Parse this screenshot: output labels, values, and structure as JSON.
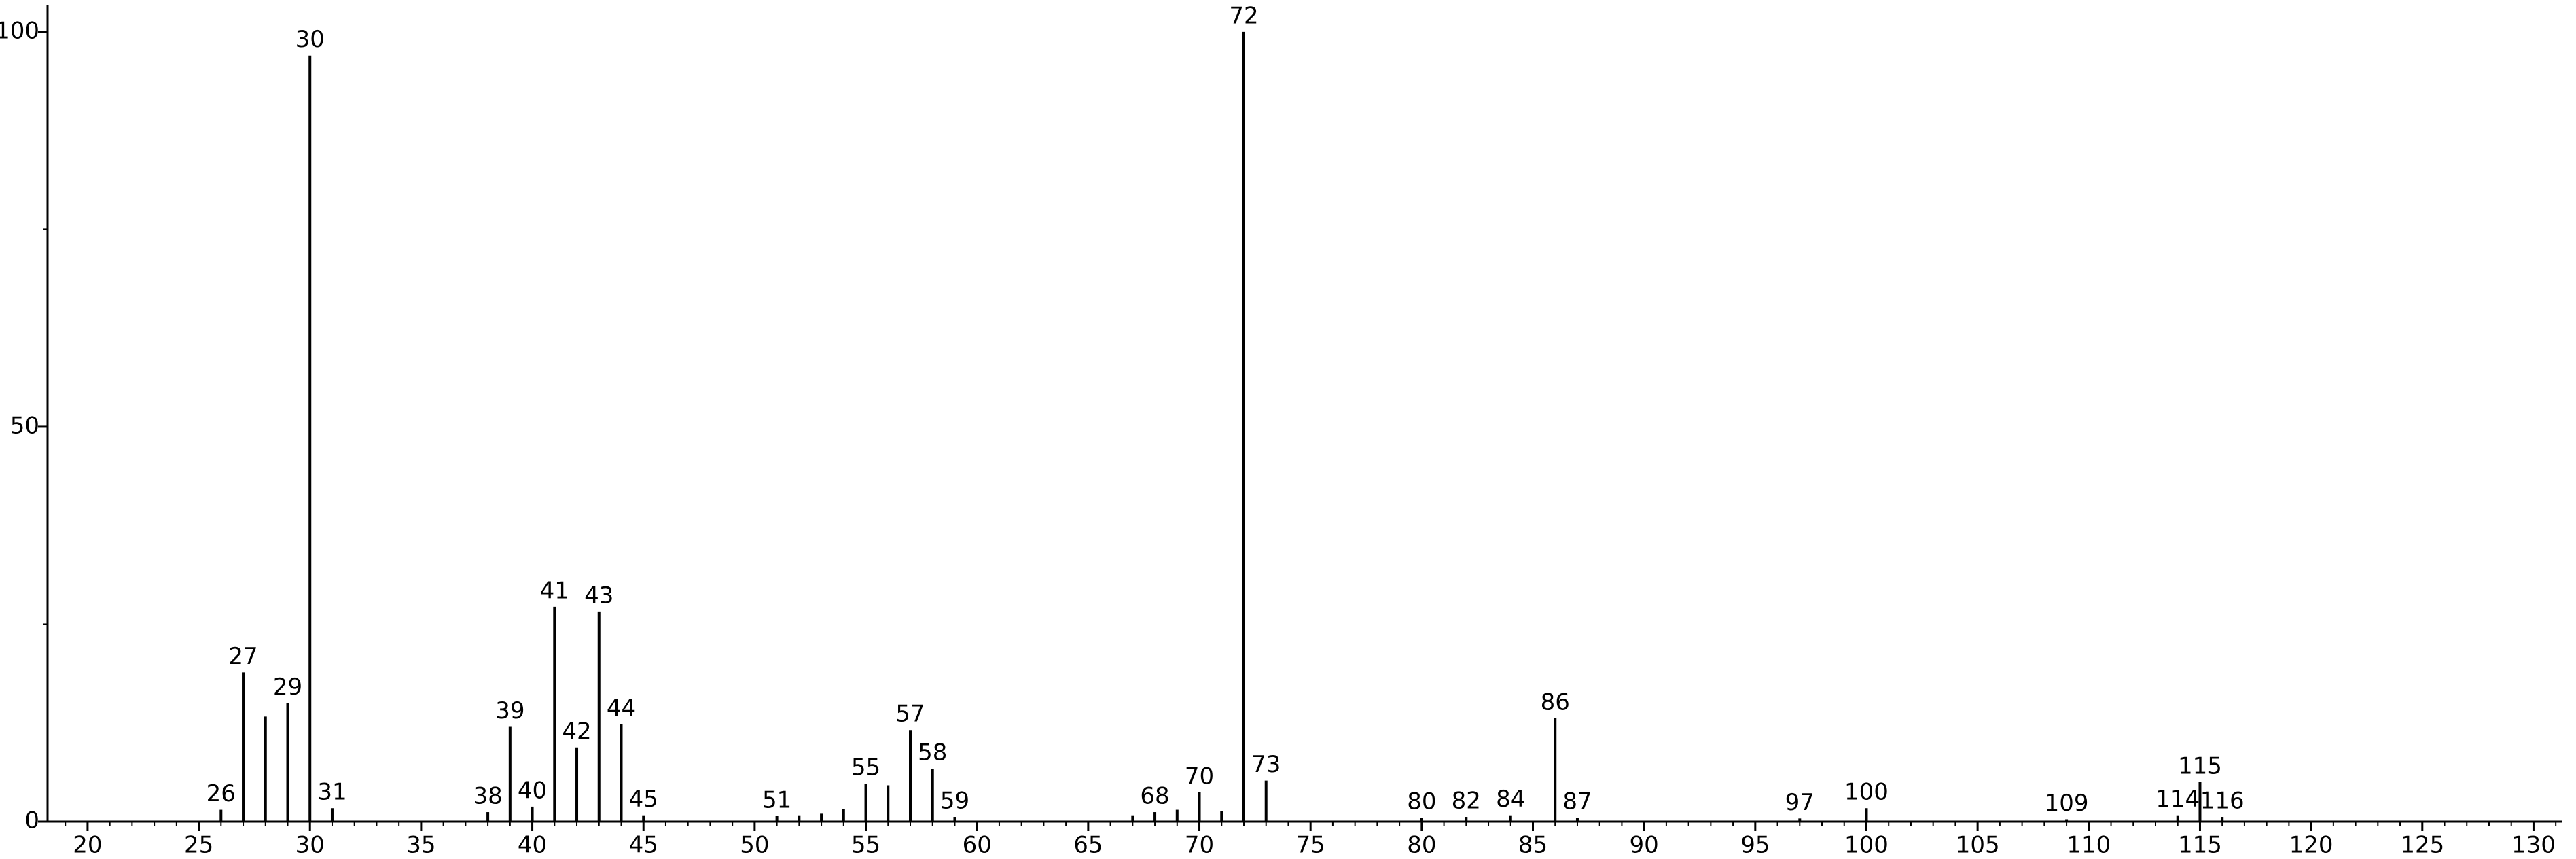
{
  "chart_data": {
    "type": "stem",
    "x": [
      26,
      27,
      28,
      29,
      30,
      31,
      38,
      39,
      40,
      41,
      42,
      43,
      44,
      45,
      51,
      52,
      53,
      54,
      55,
      56,
      57,
      58,
      59,
      67,
      68,
      69,
      70,
      71,
      72,
      73,
      80,
      82,
      84,
      86,
      87,
      97,
      100,
      109,
      114,
      115,
      116
    ],
    "values": [
      1.5,
      18.9,
      13.3,
      15,
      97,
      1.7,
      1.2,
      12,
      1.9,
      27.2,
      9.4,
      26.6,
      12.3,
      0.8,
      0.7,
      0.8,
      1,
      1.6,
      4.8,
      4.6,
      11.6,
      6.7,
      0.6,
      0.8,
      1.2,
      1.5,
      3.7,
      1.3,
      100,
      5.2,
      0.5,
      0.6,
      0.8,
      13.1,
      0.5,
      0.4,
      1.7,
      0.3,
      0.8,
      5,
      0.6
    ],
    "labels": [
      "26",
      "27",
      null,
      "29",
      "30",
      "31",
      "38",
      "39",
      "40",
      "41",
      "42",
      "43",
      "44",
      "45",
      "51",
      null,
      null,
      null,
      "55",
      null,
      "57",
      "58",
      "59",
      null,
      "68",
      null,
      "70",
      null,
      "72",
      "73",
      "80",
      "82",
      "84",
      "86",
      "87",
      "97",
      "100",
      "109",
      "114",
      "115",
      "116"
    ],
    "color": "#000000",
    "xlim": [
      18.2,
      131.3
    ],
    "ylim": [
      0,
      103
    ],
    "xticks": [
      20,
      25,
      30,
      35,
      40,
      45,
      50,
      55,
      60,
      65,
      70,
      75,
      80,
      85,
      90,
      95,
      100,
      105,
      110,
      115,
      120,
      125,
      130
    ],
    "xminorticks": [
      19,
      20,
      21,
      22,
      23,
      24,
      25,
      26,
      27,
      28,
      29,
      30,
      31,
      32,
      33,
      34,
      35,
      36,
      37,
      38,
      39,
      40,
      41,
      42,
      43,
      44,
      45,
      46,
      47,
      48,
      49,
      50,
      51,
      52,
      53,
      54,
      55,
      56,
      57,
      58,
      59,
      60,
      61,
      62,
      63,
      64,
      65,
      66,
      67,
      68,
      69,
      70,
      71,
      72,
      73,
      74,
      75,
      76,
      77,
      78,
      79,
      80,
      81,
      82,
      83,
      84,
      85,
      86,
      87,
      88,
      89,
      90,
      91,
      92,
      93,
      94,
      95,
      96,
      97,
      98,
      99,
      100,
      101,
      102,
      103,
      104,
      105,
      106,
      107,
      108,
      109,
      110,
      111,
      112,
      113,
      114,
      115,
      116,
      117,
      118,
      119,
      120,
      121,
      122,
      123,
      124,
      125,
      126,
      127,
      128,
      129,
      130,
      131
    ],
    "yticks": [
      0,
      50,
      100
    ],
    "yminorticks": [
      25,
      75
    ]
  }
}
